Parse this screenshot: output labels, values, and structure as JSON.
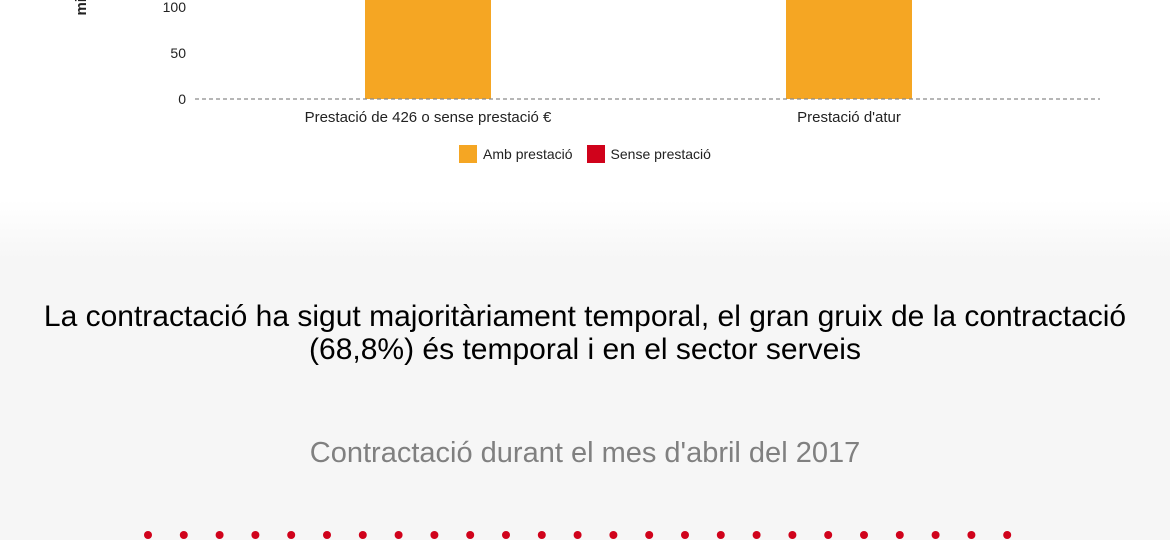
{
  "chart_data": {
    "type": "bar",
    "ylabel": "mi",
    "categories": [
      "Prestació de 426 o sense prestació €",
      "Prestació d'atur"
    ],
    "y_ticks": [
      "100",
      "50",
      "0"
    ],
    "series": [
      {
        "name": "Amb prestació",
        "color": "#f5a623",
        "values": [
          110,
          110
        ]
      },
      {
        "name": "Sense prestació",
        "color": "#d0021b",
        "values": [
          0,
          0
        ]
      }
    ],
    "ylim": [
      0,
      110
    ],
    "grid": false,
    "legend_position": "bottom"
  },
  "headline": "La contractació ha sigut majoritàriament temporal, el gran gruix de la contractació (68,8%) és temporal i en el sector serveis",
  "subtitle": "Contractació durant el mes d'abril del 2017",
  "dots": {
    "count": 25,
    "color": "#d0021b"
  }
}
